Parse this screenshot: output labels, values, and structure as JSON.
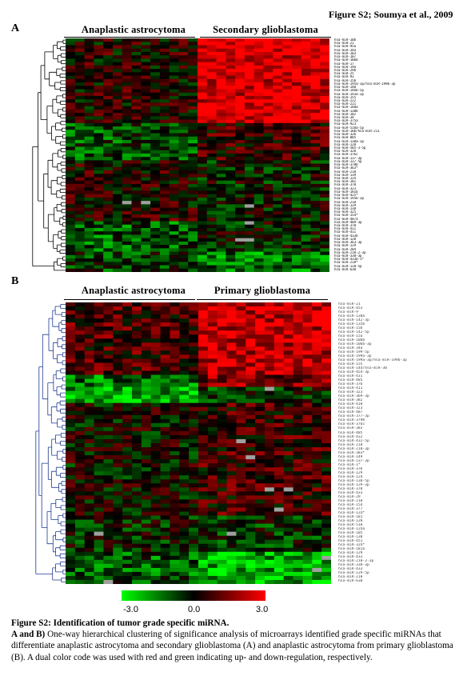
{
  "figure_title": "Figure S2; Soumya et al., 2009",
  "panelA": {
    "letter": "A",
    "group_left": "Anaplastic astrocytoma",
    "group_right": "Secondary glioblastoma",
    "mirnas": [
      "hsa-miR-10b",
      "hsa-miR-21",
      "hsa-miR-95a",
      "hsa-miR-34a",
      "hsa-miR-103",
      "hsa-miR-107",
      "hsa-miR-106b",
      "hsa-miR-17",
      "hsa-miR-19a",
      "hsa-miR-29b",
      "hsa-miR-25",
      "hsa-miR-93",
      "hsa-miR-15b",
      "hsa-miR-195a-3p/hsa-miR-199b-3p",
      "hsa-miR-140",
      "hsa-miR-146b-5p",
      "hsa-miR-193a-3p",
      "hsa-miR-155",
      "hsa-miR-222",
      "hsa-miR-221",
      "hsa-miR-148a",
      "hsa-miR-130b",
      "hsa-miR-182",
      "hsa-miR-34",
      "hsa-miR-375a",
      "hsa-miR-923",
      "hsa-miR-518a-5p",
      "hsa-miR-18b/hsa-miR-211",
      "hsa-miR-326",
      "hsa-miR-885",
      "hsa-miR-130a-3p",
      "hsa-miR-128",
      "hsa-miR-505-3-5p",
      "hsa-miR-328",
      "hsa-miR-376c",
      "hsa-miR-137-3p",
      "hsa-miR-137-5p",
      "hsa-miR-378b",
      "hsa-miR-363*",
      "hsa-miR-218",
      "hsa-miR-139",
      "hsa-miR-124",
      "hsa-miR-181",
      "hsa-miR-378",
      "hsa-miR-323",
      "hsa-miR-181b",
      "hsa-miR-425*",
      "hsa-miR-195b-3p",
      "hsa-miR-218",
      "hsa-miR-129",
      "hsa-miR-138",
      "hsa-miR-325",
      "hsa-miR-154*",
      "hsa-miR-487a",
      "hsa-miR-409-3p",
      "hsa-miR-370",
      "hsa-miR-411",
      "hsa-miR-411",
      "hsa-miR-433b",
      "hsa-miR-128",
      "hsa-miR-363-3p",
      "hsa-miR-129",
      "hsa-miR-204",
      "hsa-miR-218-2-3p",
      "hsa-miR-338-3p",
      "hsa-miR-433b-1*",
      "hsa-miR-218*",
      "hsa-miR-128-5p",
      "hsa-miR-630"
    ]
  },
  "panelB": {
    "letter": "B",
    "group_left": "Anaplastic astrocytoma",
    "group_right": "Primary glioblastoma",
    "mirnas": [
      "hsa-miR-21",
      "hsa-miR-453",
      "hsa-miR-9",
      "hsa-miR-130a",
      "hsa-miR-142-3p",
      "hsa-miR-135b",
      "hsa-miR-15b",
      "hsa-miR-142-5p",
      "hsa-miR-15a",
      "hsa-miR-106b",
      "hsa-miR-106b-3p",
      "hsa-miR-34a",
      "hsa-miR-199-5p",
      "hsa-miR-199a-3p",
      "hsa-miR-199a-3p/hsa-miR-199b-3p",
      "hsa-miR-155",
      "hsa-miR-144/hsa-miR-30",
      "hsa-miR-454-3p",
      "hsa-miR-431",
      "hsa-miR-485",
      "hsa-miR-376",
      "hsa-miR-411",
      "hsa-miR-323",
      "hsa-miR-369-3p",
      "hsa-miR-382",
      "hsa-miR-410",
      "hsa-miR-323",
      "hsa-miR-487",
      "hsa-miR-377-3p",
      "hsa-miR-379b",
      "hsa-miR-376c",
      "hsa-miR-383",
      "hsa-miR-485",
      "hsa-miR-432",
      "hsa-miR-432-5p",
      "hsa-miR-218",
      "hsa-miR-218-3p",
      "hsa-miR-383*",
      "hsa-miR-149",
      "hsa-miR-137-3p",
      "hsa-miR-1*",
      "hsa-miR-376",
      "hsa-miR-129",
      "hsa-miR-124",
      "hsa-miR-138-5p",
      "hsa-miR-129-3p",
      "hsa-miR-370",
      "hsa-miR-433",
      "hsa-miR-29",
      "hsa-miR-218",
      "hsa-miR-154",
      "hsa-miR-377",
      "hsa-miR-124*",
      "hsa-miR-181",
      "hsa-miR-128",
      "hsa-miR-518",
      "hsa-miR-124a",
      "hsa-miR-105",
      "hsa-miR-138",
      "hsa-miR-451",
      "hsa-miR-324*",
      "hsa-miR-181a",
      "hsa-miR-129",
      "hsa-miR-433",
      "hsa-miR-218-2-3p",
      "hsa-miR-338-3p",
      "hsa-miR-433",
      "hsa-miR-129-5p",
      "hsa-miR-218",
      "hsa-miR-630"
    ]
  },
  "colorbar": {
    "min_label": "-3.0",
    "mid_label": "0.0",
    "max_label": "3.0",
    "low_color": "#00ff00",
    "mid_color": "#000000",
    "high_color": "#ff0000",
    "missing_color": "#a0a0a0"
  },
  "caption": {
    "title": "Figure S2: Identification of tumor grade specific miRNA.",
    "panels_label": "A and B)",
    "body": " One-way hierarchical clustering of significance analysis of microarrays identified grade specific miRNAs that differentiate anaplastic astrocytoma and secondary glioblastoma (A) and anaplastic astrocytoma from primary glioblastoma (B).  A dual color code was used with red and green indicating up- and down-regulation, respectively."
  }
}
